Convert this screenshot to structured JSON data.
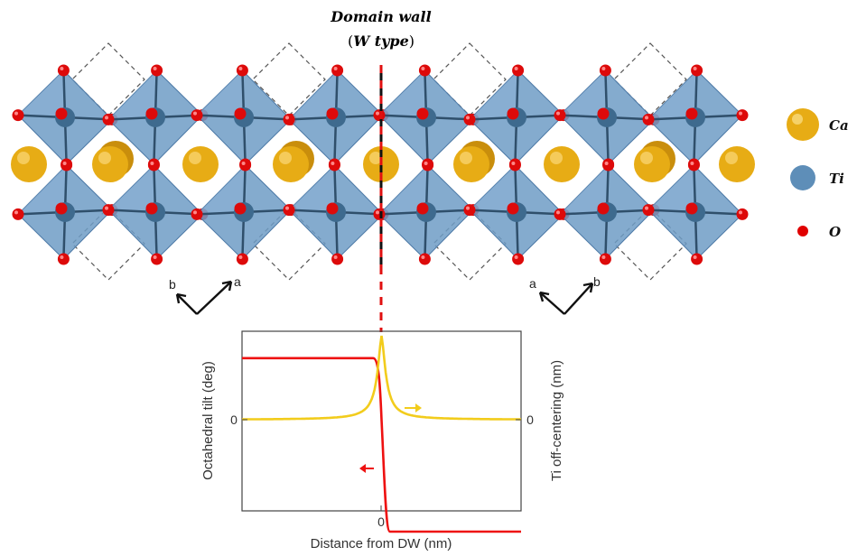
{
  "title": {
    "line1": "Domain wall",
    "line2_open": "(",
    "line2_main": "W type",
    "line2_close": ")"
  },
  "legend": [
    {
      "label": "Ca",
      "color": "#E7AC15",
      "icon": "ca-atom-icon"
    },
    {
      "label": "Ti",
      "color": "#5E8EB8",
      "icon": "ti-atom-icon"
    },
    {
      "label": "O",
      "color": "#E00000",
      "icon": "o-atom-icon"
    }
  ],
  "axes_left": {
    "b": "b",
    "a": "a"
  },
  "axes_right": {
    "a": "a",
    "b": "b"
  },
  "colors": {
    "octahedron": "#6E9CC6",
    "octahedron_edge": "#4C79A6",
    "ti": "#3E6A8E",
    "ca": "#E7AC15",
    "o": "#DD0A0A",
    "tilt_curve": "#EE1111",
    "offcenter_curve": "#F2CC1C",
    "wall_line": "#E01010"
  },
  "chart_data": {
    "type": "line",
    "xlabel": "Distance from DW (nm)",
    "ylabel_left": "Octahedral tilt (deg)",
    "ylabel_right": "Ti off-centering (nm)",
    "x_ticks": [
      "0"
    ],
    "y_left_ticks": [
      "0"
    ],
    "y_right_ticks": [
      "0"
    ],
    "series": [
      {
        "name": "",
        "axis": "left",
        "color": "#EE1111",
        "x": [
          -1.0,
          -0.06,
          -0.02,
          0.0,
          0.02,
          0.04,
          0.06,
          1.0
        ],
        "y": [
          0.55,
          0.55,
          0.5,
          0.1,
          -0.5,
          -0.95,
          -1.0,
          -1.0
        ]
      },
      {
        "name": "",
        "axis": "right",
        "color": "#F2CC1C",
        "x": [
          -1.0,
          -0.5,
          -0.2,
          -0.1,
          -0.05,
          0.0,
          0.05,
          0.1,
          0.2,
          0.5,
          1.0
        ],
        "y": [
          0.0,
          0.01,
          0.06,
          0.18,
          0.45,
          1.0,
          0.45,
          0.18,
          0.06,
          0.01,
          0.0
        ]
      }
    ],
    "annotations": [
      "left-arrow on tilt curve",
      "right-arrow on off-centering curve"
    ]
  }
}
